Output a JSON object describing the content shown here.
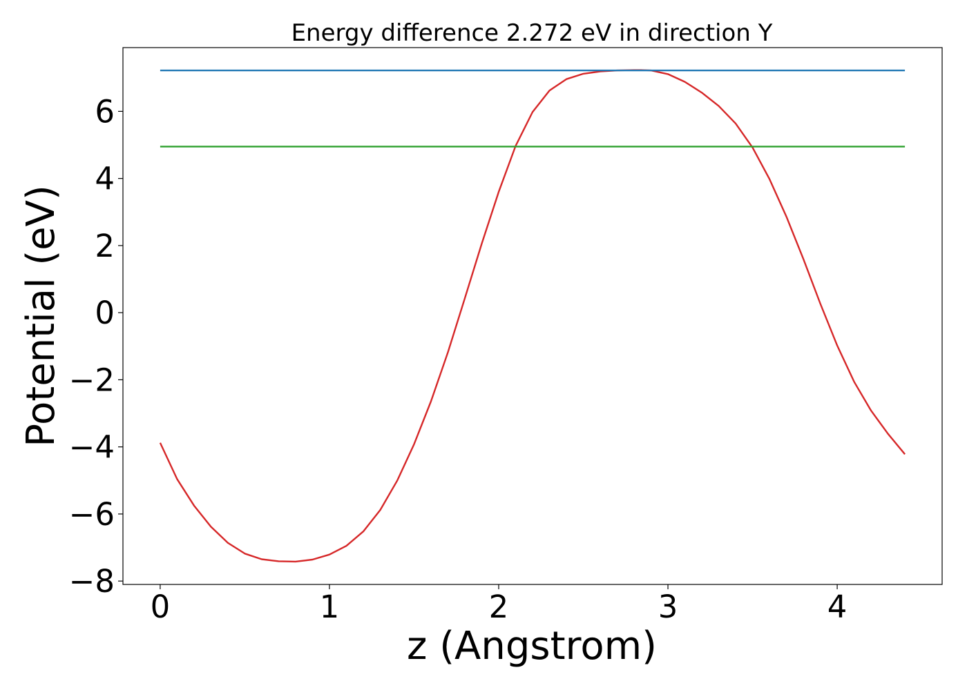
{
  "chart_data": {
    "type": "line",
    "title": "Energy difference 2.272 eV in direction Y",
    "xlabel": "z (Angstrom)",
    "ylabel": "Potential (eV)",
    "xlim": [
      -0.22,
      4.62
    ],
    "ylim": [
      -8.1,
      7.9
    ],
    "xticks": [
      0,
      1,
      2,
      3,
      4
    ],
    "xtick_labels": [
      "0",
      "1",
      "2",
      "3",
      "4"
    ],
    "yticks": [
      -8,
      -6,
      -4,
      -2,
      0,
      2,
      4,
      6
    ],
    "ytick_labels": [
      "−8",
      "−6",
      "−4",
      "−2",
      "0",
      "2",
      "4",
      "6"
    ],
    "grid": false,
    "legend": "none",
    "series": [
      {
        "color": "#d62728",
        "x": [
          0,
          0.1,
          0.2,
          0.3,
          0.4,
          0.5,
          0.6,
          0.7,
          0.8,
          0.9,
          1.0,
          1.1,
          1.2,
          1.3,
          1.4,
          1.5,
          1.6,
          1.7,
          1.8,
          1.9,
          2.0,
          2.1,
          2.2,
          2.3,
          2.4,
          2.5,
          2.6,
          2.7,
          2.8,
          2.84,
          2.9,
          3.0,
          3.1,
          3.2,
          3.3,
          3.4,
          3.5,
          3.6,
          3.7,
          3.8,
          3.9,
          4.0,
          4.1,
          4.2,
          4.3,
          4.4
        ],
        "y": [
          -3.88,
          -4.96,
          -5.75,
          -6.38,
          -6.86,
          -7.18,
          -7.35,
          -7.41,
          -7.42,
          -7.36,
          -7.21,
          -6.95,
          -6.52,
          -5.88,
          -5.01,
          -3.92,
          -2.64,
          -1.18,
          0.43,
          2.06,
          3.6,
          4.97,
          5.98,
          6.62,
          6.96,
          7.12,
          7.19,
          7.22,
          7.23,
          7.23,
          7.22,
          7.11,
          6.88,
          6.56,
          6.16,
          5.64,
          4.92,
          3.98,
          2.86,
          1.6,
          0.27,
          -0.98,
          -2.06,
          -2.92,
          -3.61,
          -4.22
        ]
      },
      {
        "color": "#1f77b4",
        "x": [
          0,
          4.4
        ],
        "y": [
          7.22,
          7.22
        ]
      },
      {
        "color": "#2ca02c",
        "x": [
          0,
          4.4
        ],
        "y": [
          4.95,
          4.95
        ]
      }
    ]
  }
}
